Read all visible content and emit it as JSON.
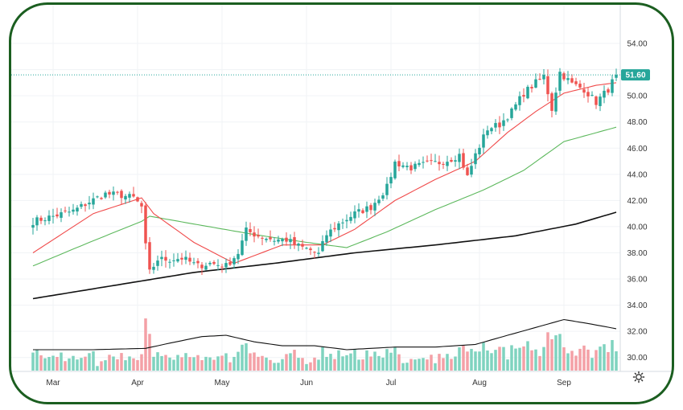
{
  "colors": {
    "frame": "#1b5e20",
    "up": "#26a69a",
    "down": "#ef5350",
    "vol_up": "#7fd3bf",
    "vol_down": "#f4a0a6",
    "ma_fast": "#f04a4a",
    "ma_mid": "#5cb85c",
    "ma_slow": "#111111",
    "vol_ma": "#111111",
    "price_tag": "#26a69a",
    "grid": "#f0f3f6"
  },
  "icons": {
    "settings": "gear-icon"
  },
  "chart_data": {
    "type": "candlestick",
    "title": "",
    "ylim": [
      29.0,
      54.8
    ],
    "y_ticks": [
      "30.00",
      "32.00",
      "34.00",
      "36.00",
      "38.00",
      "40.00",
      "42.00",
      "44.00",
      "46.00",
      "48.00",
      "50.00",
      "52.00",
      "54.00"
    ],
    "months": [
      {
        "label": "Mar",
        "index": 5
      },
      {
        "label": "Apr",
        "index": 26
      },
      {
        "label": "May",
        "index": 47
      },
      {
        "label": "Jun",
        "index": 68
      },
      {
        "label": "Jul",
        "index": 89
      },
      {
        "label": "Aug",
        "index": 111
      },
      {
        "label": "Sep",
        "index": 132
      }
    ],
    "last_price": "51.60",
    "last_price_value": 51.6,
    "n_bars": 146,
    "anchors": [
      [
        0,
        40.4
      ],
      [
        5,
        40.8
      ],
      [
        10,
        41.2
      ],
      [
        14,
        41.9
      ],
      [
        18,
        42.5
      ],
      [
        22,
        42.4
      ],
      [
        25,
        42.2
      ],
      [
        27,
        41.5
      ],
      [
        28,
        38.5
      ],
      [
        29,
        36.5
      ],
      [
        31,
        37.5
      ],
      [
        34,
        37.5
      ],
      [
        37,
        37.6
      ],
      [
        41,
        37.0
      ],
      [
        44,
        37.2
      ],
      [
        48,
        37.0
      ],
      [
        51,
        38.0
      ],
      [
        53,
        39.7
      ],
      [
        56,
        39.3
      ],
      [
        60,
        39.0
      ],
      [
        63,
        39.0
      ],
      [
        66,
        38.5
      ],
      [
        69,
        38.2
      ],
      [
        71,
        37.9
      ],
      [
        73,
        39.4
      ],
      [
        76,
        40.2
      ],
      [
        80,
        41.0
      ],
      [
        84,
        41.5
      ],
      [
        88,
        43.0
      ],
      [
        90,
        44.9
      ],
      [
        94,
        44.5
      ],
      [
        98,
        44.8
      ],
      [
        101,
        44.9
      ],
      [
        104,
        45.2
      ],
      [
        106,
        45.5
      ],
      [
        108,
        43.8
      ],
      [
        110,
        45.5
      ],
      [
        113,
        47.5
      ],
      [
        116,
        47.8
      ],
      [
        119,
        48.8
      ],
      [
        122,
        50.2
      ],
      [
        125,
        51.0
      ],
      [
        127,
        51.5
      ],
      [
        129,
        49.0
      ],
      [
        131,
        51.8
      ],
      [
        134,
        50.9
      ],
      [
        137,
        50.5
      ],
      [
        140,
        49.5
      ],
      [
        143,
        50.5
      ],
      [
        145,
        51.6
      ]
    ],
    "ma_fast": [
      [
        0,
        38.0
      ],
      [
        15,
        41.0
      ],
      [
        27,
        42.2
      ],
      [
        30,
        41.0
      ],
      [
        40,
        38.8
      ],
      [
        50,
        37.2
      ],
      [
        62,
        38.6
      ],
      [
        72,
        38.6
      ],
      [
        80,
        39.8
      ],
      [
        90,
        42.0
      ],
      [
        100,
        43.6
      ],
      [
        110,
        45.0
      ],
      [
        118,
        47.2
      ],
      [
        125,
        48.8
      ],
      [
        132,
        50.2
      ],
      [
        140,
        50.8
      ],
      [
        145,
        51.0
      ]
    ],
    "ma_mid": [
      [
        0,
        37.0
      ],
      [
        14,
        38.8
      ],
      [
        27,
        40.4
      ],
      [
        29,
        40.8
      ],
      [
        40,
        40.2
      ],
      [
        55,
        39.4
      ],
      [
        68,
        38.8
      ],
      [
        78,
        38.4
      ],
      [
        88,
        39.6
      ],
      [
        100,
        41.3
      ],
      [
        112,
        42.8
      ],
      [
        122,
        44.3
      ],
      [
        132,
        46.5
      ],
      [
        145,
        47.6
      ]
    ],
    "ma_slow": [
      [
        0,
        34.5
      ],
      [
        20,
        35.5
      ],
      [
        40,
        36.5
      ],
      [
        60,
        37.2
      ],
      [
        80,
        38.0
      ],
      [
        100,
        38.6
      ],
      [
        120,
        39.3
      ],
      [
        135,
        40.2
      ],
      [
        145,
        41.1
      ]
    ],
    "volume": {
      "base": 29.3,
      "ma": [
        [
          0,
          30.6
        ],
        [
          15,
          30.6
        ],
        [
          28,
          30.7
        ],
        [
          34,
          31.1
        ],
        [
          42,
          31.6
        ],
        [
          48,
          31.7
        ],
        [
          55,
          31.2
        ],
        [
          62,
          30.9
        ],
        [
          70,
          30.9
        ],
        [
          78,
          30.6
        ],
        [
          90,
          30.8
        ],
        [
          100,
          30.8
        ],
        [
          110,
          31.0
        ],
        [
          118,
          31.7
        ],
        [
          125,
          32.3
        ],
        [
          132,
          32.9
        ],
        [
          138,
          32.6
        ],
        [
          145,
          32.2
        ]
      ]
    }
  }
}
